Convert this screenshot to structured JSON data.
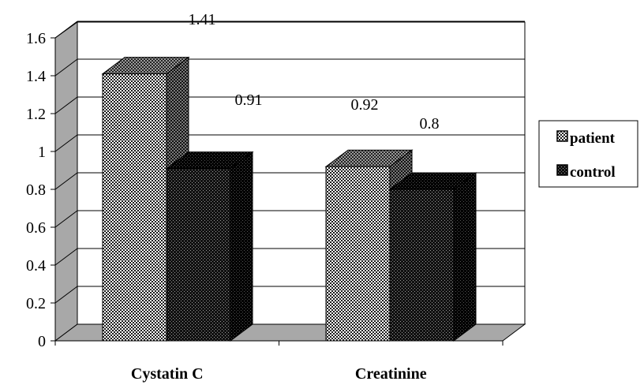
{
  "chart_data": {
    "type": "bar",
    "style": "3d-clustered-column",
    "categories": [
      "Cystatin C",
      "Creatinine"
    ],
    "series": [
      {
        "name": "patient",
        "values": [
          1.41,
          0.92
        ],
        "pattern": "checkerboard-light"
      },
      {
        "name": "control",
        "values": [
          0.91,
          0.8
        ],
        "pattern": "checkerboard-dark"
      }
    ],
    "data_labels": [
      "1.41",
      "0.91",
      "0.92",
      "0.8"
    ],
    "y_ticks": [
      "0",
      "0.2",
      "0.4",
      "0.6",
      "0.8",
      "1",
      "1.2",
      "1.4",
      "1.6"
    ],
    "ylim": [
      0,
      1.6
    ],
    "grid": true,
    "legend_position": "right",
    "title": "",
    "xlabel": "",
    "ylabel": ""
  }
}
